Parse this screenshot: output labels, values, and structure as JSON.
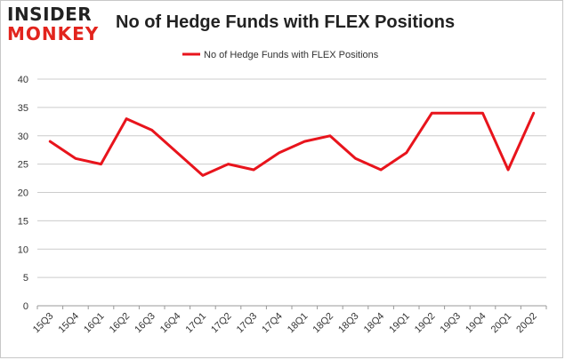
{
  "logo": {
    "line1": "INSIDER",
    "line2": "MONKEY"
  },
  "colors": {
    "series": "#e8141c",
    "grid": "#cccccc",
    "axis": "#999999",
    "brand_red": "#e2241d"
  },
  "chart_data": {
    "type": "line",
    "title": "No of Hedge Funds with FLEX Positions",
    "xlabel": "",
    "ylabel": "",
    "legend_position": "top-center",
    "grid": true,
    "ylim": [
      0,
      40
    ],
    "yticks": [
      0,
      5,
      10,
      15,
      20,
      25,
      30,
      35,
      40
    ],
    "categories": [
      "15Q3",
      "15Q4",
      "16Q1",
      "16Q2",
      "16Q3",
      "16Q4",
      "17Q1",
      "17Q2",
      "17Q3",
      "17Q4",
      "18Q1",
      "18Q2",
      "18Q3",
      "18Q4",
      "19Q1",
      "19Q2",
      "19Q3",
      "19Q4",
      "20Q1",
      "20Q2"
    ],
    "series": [
      {
        "name": "No of Hedge Funds with FLEX Positions",
        "values": [
          29,
          26,
          25,
          33,
          31,
          27,
          23,
          25,
          24,
          27,
          29,
          30,
          26,
          24,
          27,
          34,
          34,
          34,
          24,
          34
        ]
      }
    ]
  }
}
